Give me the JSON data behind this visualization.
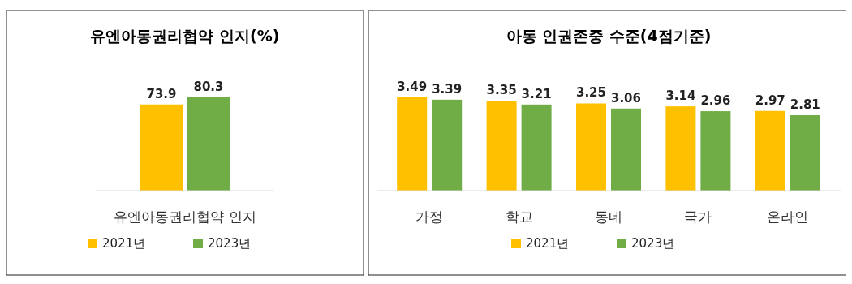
{
  "chart_data": [
    {
      "type": "bar",
      "title": "유엔아동권리협약 인지(%)",
      "categories": [
        "유엔아동권리협약 인지"
      ],
      "series": [
        {
          "name": "2021년",
          "color": "#ffc000",
          "values": [
            73.9
          ]
        },
        {
          "name": "2023년",
          "color": "#70ad47",
          "values": [
            80.3
          ]
        }
      ],
      "data_labels": true,
      "legend": "bottom"
    },
    {
      "type": "bar",
      "title": "아동 인권존중 수준(4점기준)",
      "categories": [
        "가정",
        "학교",
        "동네",
        "국가",
        "온라인"
      ],
      "series": [
        {
          "name": "2021년",
          "color": "#ffc000",
          "values": [
            3.49,
            3.35,
            3.25,
            3.14,
            2.97
          ]
        },
        {
          "name": "2023년",
          "color": "#70ad47",
          "values": [
            3.39,
            3.21,
            3.06,
            2.96,
            2.81
          ]
        }
      ],
      "data_labels": true,
      "legend": "bottom"
    }
  ]
}
